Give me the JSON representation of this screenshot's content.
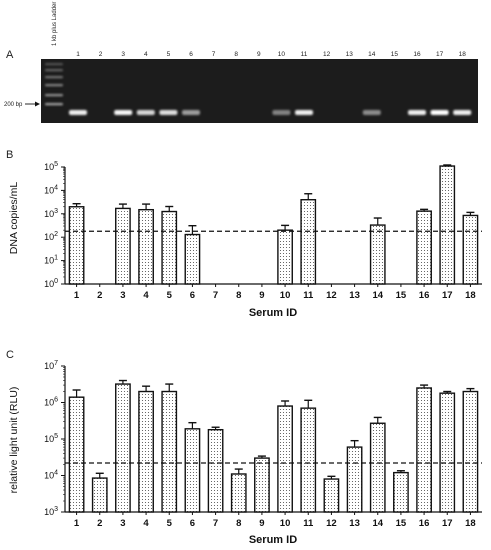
{
  "panel_a": {
    "letter": "A",
    "ladder_label": "1 kb plus Ladder",
    "marker_label": "200 bp",
    "lanes": [
      "1",
      "2",
      "3",
      "4",
      "5",
      "6",
      "7",
      "8",
      "9",
      "10",
      "11",
      "12",
      "13",
      "14",
      "15",
      "16",
      "17",
      "18"
    ],
    "band_intensity": [
      0.9,
      0,
      0.95,
      0.75,
      0.8,
      0.4,
      0,
      0,
      0,
      0.25,
      0.9,
      0,
      0,
      0.3,
      0,
      0.9,
      1.0,
      0.9
    ]
  },
  "chart_data": [
    {
      "panel": "B",
      "type": "bar",
      "categories": [
        "1",
        "2",
        "3",
        "4",
        "5",
        "6",
        "7",
        "8",
        "9",
        "10",
        "11",
        "12",
        "13",
        "14",
        "15",
        "16",
        "17",
        "18"
      ],
      "values": [
        2000,
        null,
        1700,
        1500,
        1250,
        130,
        null,
        null,
        null,
        200,
        4000,
        null,
        null,
        330,
        null,
        1300,
        110000,
        850
      ],
      "errors": [
        700,
        null,
        900,
        1100,
        800,
        180,
        null,
        null,
        null,
        120,
        3200,
        null,
        null,
        330,
        null,
        250,
        12000,
        300
      ],
      "xlabel": "Serum ID",
      "ylabel": "DNA copies/mL",
      "yscale": "log",
      "ylim": [
        1,
        100000
      ],
      "yticks": [
        {
          "exp": "0"
        },
        {
          "exp": "1"
        },
        {
          "exp": "2"
        },
        {
          "exp": "3"
        },
        {
          "exp": "4"
        },
        {
          "exp": "5"
        }
      ],
      "tick_base": "10",
      "threshold": 180,
      "bar_fill": "dotted"
    },
    {
      "panel": "C",
      "type": "bar",
      "categories": [
        "1",
        "2",
        "3",
        "4",
        "5",
        "6",
        "7",
        "8",
        "9",
        "10",
        "11",
        "12",
        "13",
        "14",
        "15",
        "16",
        "17",
        "18"
      ],
      "values": [
        1400000,
        8500,
        3200000,
        2000000,
        2000000,
        190000,
        180000,
        11000,
        30000,
        800000,
        700000,
        8000,
        60000,
        270000,
        12000,
        2500000,
        1800000,
        2000000
      ],
      "errors": [
        800000,
        3000,
        800000,
        800000,
        1200000,
        90000,
        30000,
        4000,
        4000,
        300000,
        450000,
        1500,
        30000,
        120000,
        1500,
        500000,
        200000,
        400000
      ],
      "xlabel": "Serum ID",
      "ylabel": "relative light unit (RLU)",
      "yscale": "log",
      "ylim": [
        1000,
        10000000
      ],
      "yticks": [
        {
          "exp": "3"
        },
        {
          "exp": "4"
        },
        {
          "exp": "5"
        },
        {
          "exp": "6"
        },
        {
          "exp": "7"
        }
      ],
      "tick_base": "10",
      "threshold": 22000,
      "bar_fill": "dotted"
    }
  ]
}
